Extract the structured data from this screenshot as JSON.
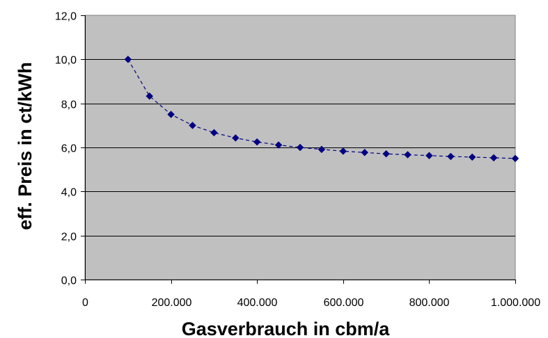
{
  "chart_data": {
    "type": "scatter",
    "title": "",
    "xlabel": "Gasverbrauch in cbm/a",
    "ylabel": "eff. Preis in ct/kWh",
    "xlim": [
      0,
      1000000
    ],
    "ylim": [
      0,
      12
    ],
    "x_ticks": [
      0,
      200000,
      400000,
      600000,
      800000,
      1000000
    ],
    "x_tick_labels": [
      "0",
      "200.000",
      "400.000",
      "600.000",
      "800.000",
      "1.000.000"
    ],
    "y_ticks": [
      0,
      2,
      4,
      6,
      8,
      10,
      12
    ],
    "y_tick_labels": [
      "0,0",
      "2,0",
      "4,0",
      "6,0",
      "8,0",
      "10,0",
      "12,0"
    ],
    "grid": "horizontal",
    "legend": "none",
    "line_style": "dashed",
    "marker": "diamond",
    "colors": {
      "plot_background": "#c0c0c0",
      "series": "#000080",
      "gridline": "#000000"
    },
    "series": [
      {
        "x": [
          100000,
          150000,
          200000,
          250000,
          300000,
          350000,
          400000,
          450000,
          500000,
          550000,
          600000,
          650000,
          700000,
          750000,
          800000,
          850000,
          900000,
          950000,
          1000000
        ],
        "y": [
          10.0,
          8.33,
          7.5,
          7.0,
          6.67,
          6.43,
          6.25,
          6.11,
          6.0,
          5.91,
          5.83,
          5.77,
          5.71,
          5.67,
          5.63,
          5.59,
          5.56,
          5.53,
          5.5
        ]
      }
    ]
  }
}
